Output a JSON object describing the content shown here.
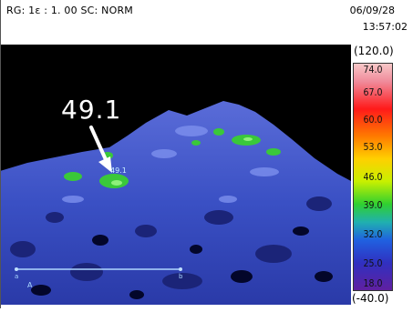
{
  "header": {
    "left_text": "RG: 1ε : 1. 00 SC: NORM",
    "date": "06/09/28",
    "time": "13:57:02"
  },
  "scale": {
    "max_label": "(120.0)",
    "min_label": "(-40.0)",
    "ticks": [
      "74.0",
      "67.0",
      "60.0",
      "53.0",
      "46.0",
      "39.0",
      "32.0",
      "25.0",
      "18.0"
    ]
  },
  "thermal_view": {
    "callout_value": "49.1",
    "spot_value": "49.1",
    "marker_a": "a",
    "marker_b": "b",
    "marker_A": "A"
  },
  "colors": {
    "background": "#ffffff",
    "image_background": "#000000",
    "hot_green": "#3ac83a",
    "mid_blue": "#3f5fd0",
    "cold_navy": "#0a1050"
  }
}
